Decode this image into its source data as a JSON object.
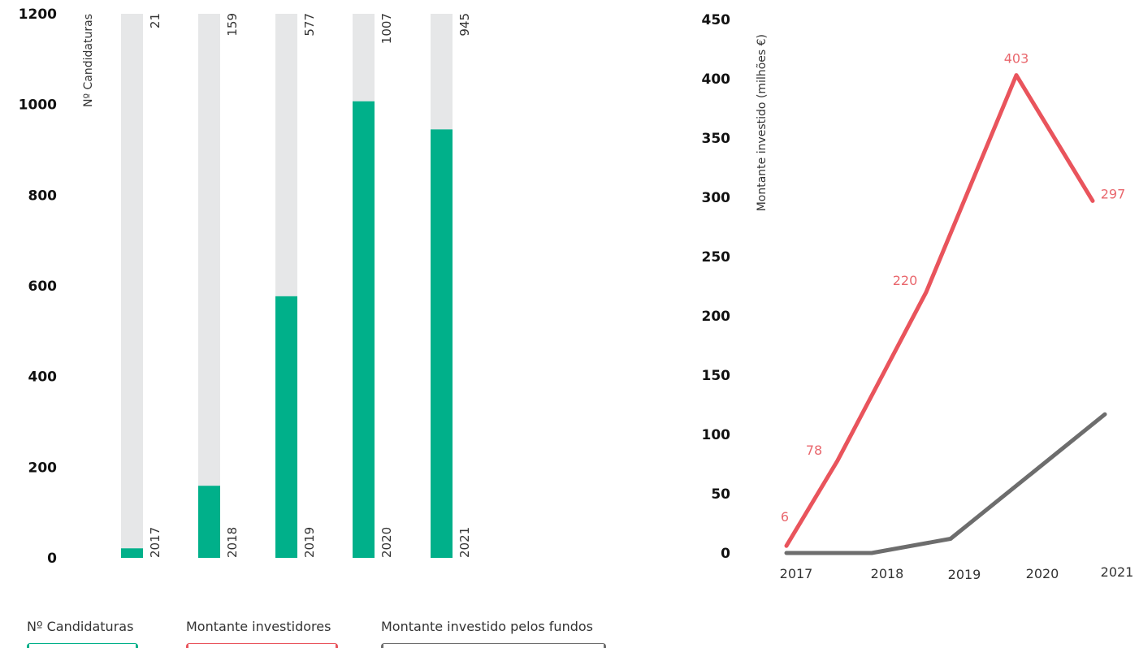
{
  "colors": {
    "candidaturas": "#00b08a",
    "candidaturas_bg": "#e6e7e8",
    "investidores": "#e9545c",
    "fundos": "#6d6d6d"
  },
  "chart_data": [
    {
      "type": "bar",
      "title": "",
      "xlabel": "",
      "ylabel": "Nº Candidaturas",
      "ylim": [
        0,
        1200
      ],
      "yticks": [
        0,
        200,
        400,
        600,
        800,
        1000,
        1200
      ],
      "categories": [
        "2017",
        "2018",
        "2019",
        "2020",
        "2021"
      ],
      "series": [
        {
          "name": "Nº Candidaturas",
          "values": [
            21,
            159,
            577,
            1007,
            945
          ]
        }
      ],
      "value_labels": [
        "21",
        "159",
        "577",
        "1007",
        "945"
      ]
    },
    {
      "type": "line",
      "title": "",
      "xlabel": "",
      "ylabel": "Montante investido (milhões €)",
      "ylim": [
        0,
        450
      ],
      "yticks": [
        0,
        50,
        100,
        150,
        200,
        250,
        300,
        350,
        400,
        450
      ],
      "categories": [
        "2017",
        "2018",
        "2019",
        "2020",
        "2021"
      ],
      "series": [
        {
          "name": "Montante investidores",
          "values": [
            6,
            78,
            220,
            403,
            297
          ],
          "labels": [
            "6",
            "78",
            "220",
            "403",
            "297"
          ]
        },
        {
          "name": "Montante investido pelos fundos",
          "values": [
            0,
            0,
            12,
            65,
            117
          ]
        }
      ]
    }
  ],
  "legend": [
    {
      "label": "Nº Candidaturas",
      "color_key": "candidaturas"
    },
    {
      "label": "Montante investidores",
      "color_key": "investidores"
    },
    {
      "label": "Montante investido pelos fundos",
      "color_key": "fundos"
    }
  ]
}
